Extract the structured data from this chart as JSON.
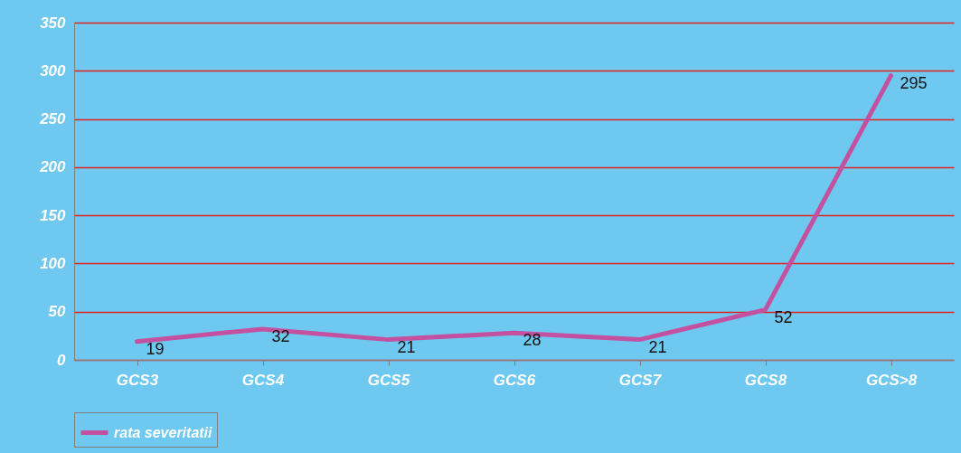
{
  "chart_data": {
    "type": "line",
    "categories": [
      "GCS3",
      "GCS4",
      "GCS5",
      "GCS6",
      "GCS7",
      "GCS8",
      "GCS>8"
    ],
    "series": [
      {
        "name": "rata severitatii",
        "color": "#c4519f",
        "values": [
          19,
          32,
          21,
          28,
          21,
          52,
          295
        ]
      }
    ],
    "ylim": [
      0,
      350
    ],
    "yticks": [
      0,
      50,
      100,
      150,
      200,
      250,
      300,
      350
    ],
    "grid": "y",
    "legend": "bottom",
    "data_labels": true,
    "marker": "none",
    "line_style": "solid"
  }
}
